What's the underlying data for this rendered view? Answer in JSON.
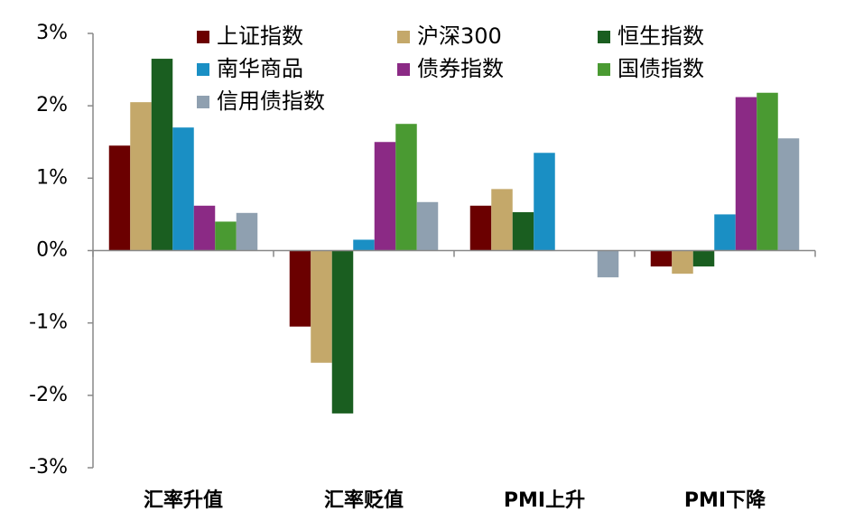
{
  "chart_data": {
    "type": "bar",
    "categories": [
      "汇率升值",
      "汇率贬值",
      "PMI上升",
      "PMI下降"
    ],
    "series": [
      {
        "name": "上证指数",
        "color": "#6b0000",
        "values": [
          1.45,
          -1.05,
          0.62,
          -0.22
        ]
      },
      {
        "name": "沪深300",
        "color": "#c4a86a",
        "values": [
          2.05,
          -1.55,
          0.85,
          -0.32
        ]
      },
      {
        "name": "恒生指数",
        "color": "#1a5e20",
        "values": [
          2.65,
          -2.25,
          0.53,
          -0.22
        ]
      },
      {
        "name": "南华商品",
        "color": "#1a8fc4",
        "values": [
          1.7,
          0.15,
          1.35,
          0.5
        ]
      },
      {
        "name": "债券指数",
        "color": "#8b2a85",
        "values": [
          0.62,
          1.5,
          null,
          2.12
        ]
      },
      {
        "name": "国债指数",
        "color": "#4a9a32",
        "values": [
          0.4,
          1.75,
          null,
          2.18
        ]
      },
      {
        "name": "信用债指数",
        "color": "#8fa0b0",
        "values": [
          0.52,
          0.67,
          -0.37,
          1.55
        ]
      }
    ],
    "ylim": [
      -3,
      3
    ],
    "yticks": [
      {
        "value": -3,
        "label": "-3%"
      },
      {
        "value": -2,
        "label": "-2%"
      },
      {
        "value": -1,
        "label": "-1%"
      },
      {
        "value": 0,
        "label": "0%"
      },
      {
        "value": 1,
        "label": "1%"
      },
      {
        "value": 2,
        "label": "2%"
      },
      {
        "value": 3,
        "label": "3%"
      }
    ]
  }
}
